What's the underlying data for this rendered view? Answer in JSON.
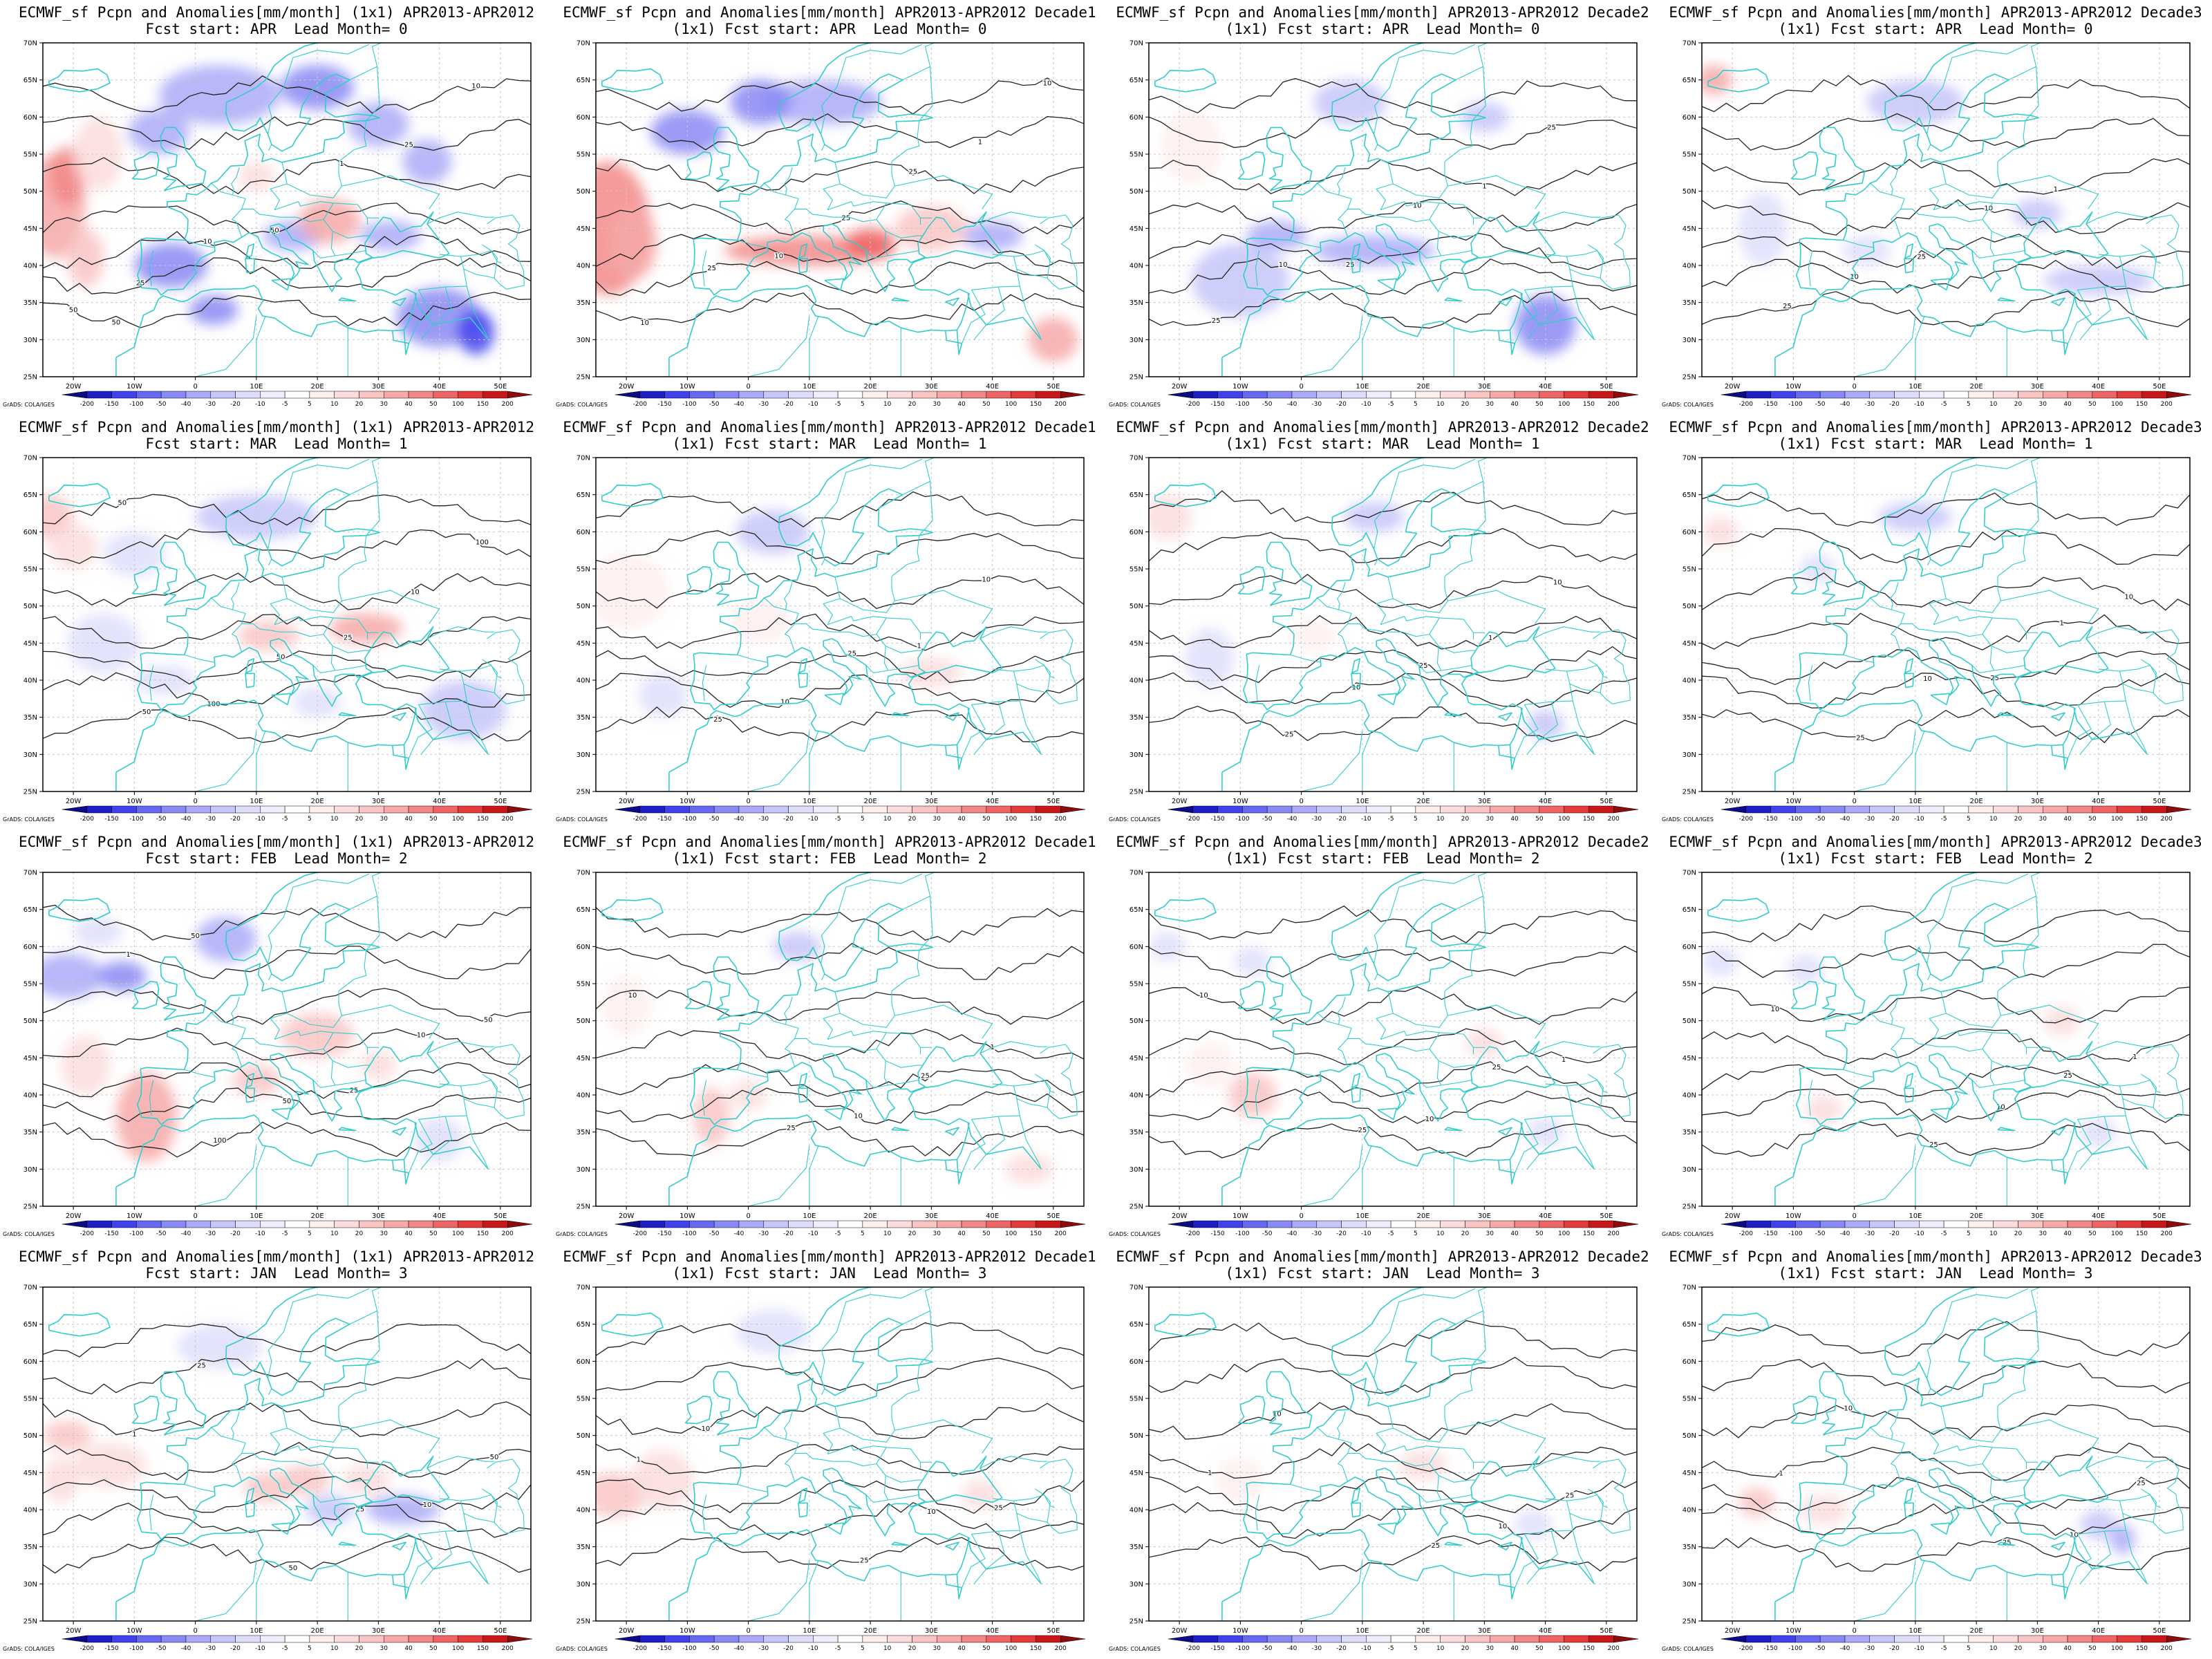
{
  "figure": {
    "lat_ticks": [
      "70N",
      "65N",
      "60N",
      "55N",
      "50N",
      "45N",
      "40N",
      "35N",
      "30N",
      "25N"
    ],
    "lon_ticks": [
      "20W",
      "10W",
      "0",
      "10E",
      "20E",
      "30E",
      "40E",
      "50E"
    ],
    "colorbar_labels": [
      "-200",
      "-150",
      "-100",
      "-50",
      "-40",
      "-30",
      "-20",
      "-10",
      "-5",
      "5",
      "10",
      "20",
      "30",
      "40",
      "50",
      "100",
      "150",
      "200"
    ],
    "colorbar_colors": [
      "#0c0c87",
      "#1f1fc8",
      "#4141ee",
      "#6868f2",
      "#8a8af5",
      "#aaaaf8",
      "#c6c6fa",
      "#dedefc",
      "#eeeefe",
      "#ffffff",
      "#feeeee",
      "#fcdcdc",
      "#fac4c4",
      "#f7a8a8",
      "#f38888",
      "#ef6464",
      "#e63a3a",
      "#c81818",
      "#8c0c0c"
    ],
    "credit": "GrADS: COLA/IGES",
    "coast_color": "#33cccc"
  },
  "panels": [
    {
      "title1": "ECMWF_sf Pcpn and Anomalies[mm/month] (1x1) APR2013-APR2012",
      "title2": "Fcst start: APR  Lead Month= 0"
    },
    {
      "title1": "ECMWF_sf Pcpn and Anomalies[mm/month] APR2013-APR2012 Decade1",
      "title2": "(1x1) Fcst start: APR  Lead Month= 0"
    },
    {
      "title1": "ECMWF_sf Pcpn and Anomalies[mm/month] APR2013-APR2012 Decade2",
      "title2": "(1x1) Fcst start: APR  Lead Month= 0"
    },
    {
      "title1": "ECMWF_sf Pcpn and Anomalies[mm/month] APR2013-APR2012 Decade3",
      "title2": "(1x1) Fcst start: APR  Lead Month= 0"
    },
    {
      "title1": "ECMWF_sf Pcpn and Anomalies[mm/month] (1x1) APR2013-APR2012",
      "title2": "Fcst start: MAR  Lead Month= 1"
    },
    {
      "title1": "ECMWF_sf Pcpn and Anomalies[mm/month] APR2013-APR2012 Decade1",
      "title2": "(1x1) Fcst start: MAR  Lead Month= 1"
    },
    {
      "title1": "ECMWF_sf Pcpn and Anomalies[mm/month] APR2013-APR2012 Decade2",
      "title2": "(1x1) Fcst start: MAR  Lead Month= 1"
    },
    {
      "title1": "ECMWF_sf Pcpn and Anomalies[mm/month] APR2013-APR2012 Decade3",
      "title2": "(1x1) Fcst start: MAR  Lead Month= 1"
    },
    {
      "title1": "ECMWF_sf Pcpn and Anomalies[mm/month] (1x1) APR2013-APR2012",
      "title2": "Fcst start: FEB  Lead Month= 2"
    },
    {
      "title1": "ECMWF_sf Pcpn and Anomalies[mm/month] APR2013-APR2012 Decade1",
      "title2": "(1x1) Fcst start: FEB  Lead Month= 2"
    },
    {
      "title1": "ECMWF_sf Pcpn and Anomalies[mm/month] APR2013-APR2012 Decade2",
      "title2": "(1x1) Fcst start: FEB  Lead Month= 2"
    },
    {
      "title1": "ECMWF_sf Pcpn and Anomalies[mm/month] APR2013-APR2012 Decade3",
      "title2": "(1x1) Fcst start: FEB  Lead Month= 2"
    },
    {
      "title1": "ECMWF_sf Pcpn and Anomalies[mm/month] (1x1) APR2013-APR2012",
      "title2": "Fcst start: JAN  Lead Month= 3"
    },
    {
      "title1": "ECMWF_sf Pcpn and Anomalies[mm/month] APR2013-APR2012 Decade1",
      "title2": "(1x1) Fcst start: JAN  Lead Month= 3"
    },
    {
      "title1": "ECMWF_sf Pcpn and Anomalies[mm/month] APR2013-APR2012 Decade2",
      "title2": "(1x1) Fcst start: JAN  Lead Month= 3"
    },
    {
      "title1": "ECMWF_sf Pcpn and Anomalies[mm/month] APR2013-APR2012 Decade3",
      "title2": "(1x1) Fcst start: JAN  Lead Month= 3"
    }
  ]
}
